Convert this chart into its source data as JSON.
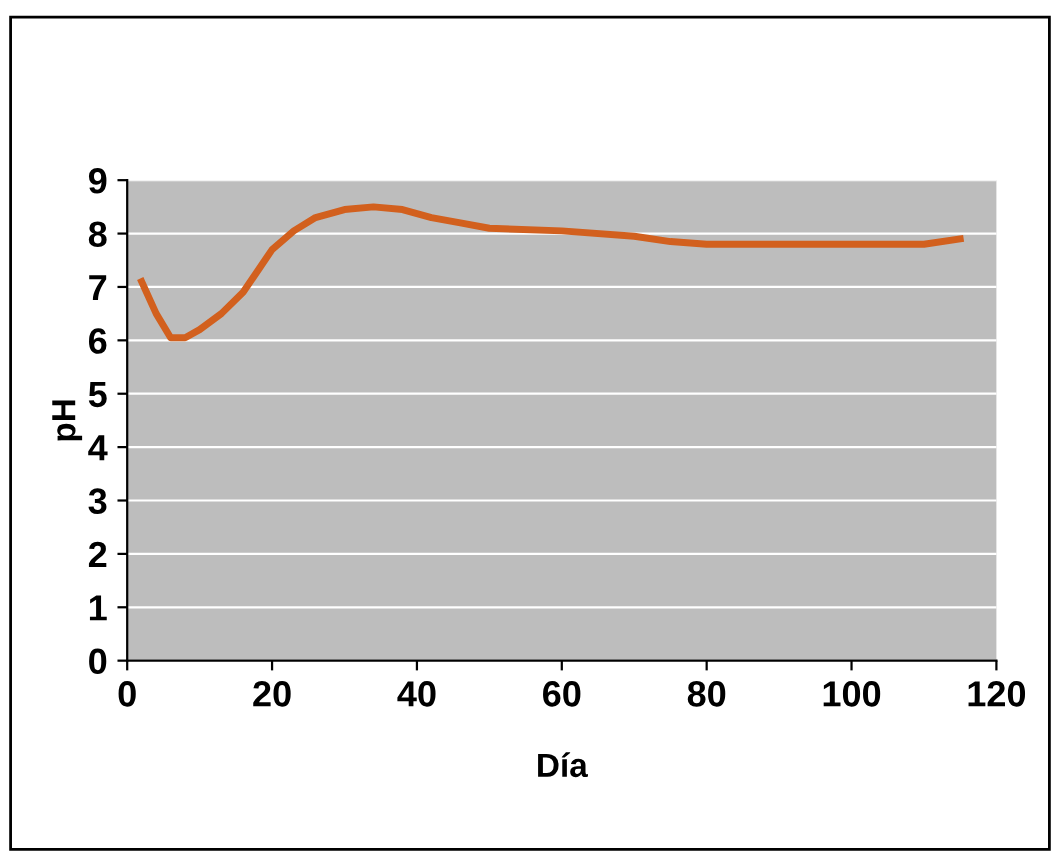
{
  "chart_data": {
    "type": "line",
    "xlabel": "Día",
    "ylabel": "pH",
    "x": [
      2,
      4,
      6,
      8,
      10,
      13,
      16,
      18,
      20,
      23,
      26,
      30,
      34,
      38,
      42,
      46,
      50,
      60,
      70,
      75,
      80,
      90,
      100,
      110,
      115
    ],
    "series": [
      {
        "color": "#d2601e",
        "values": [
          7.1,
          6.5,
          6.05,
          6.05,
          6.2,
          6.5,
          6.9,
          7.3,
          7.7,
          8.05,
          8.3,
          8.45,
          8.5,
          8.45,
          8.3,
          8.2,
          8.1,
          8.05,
          7.95,
          7.85,
          7.8,
          7.8,
          7.8,
          7.8,
          7.9
        ]
      }
    ],
    "xlim": [
      0,
      120
    ],
    "xticks": [
      0,
      20,
      40,
      60,
      80,
      100,
      120
    ],
    "ylim": [
      0,
      9
    ],
    "yticks": [
      0,
      1,
      2,
      3,
      4,
      5,
      6,
      7,
      8,
      9
    ],
    "grid": "y",
    "marker": "none",
    "line_style": "solid",
    "legend": false
  }
}
